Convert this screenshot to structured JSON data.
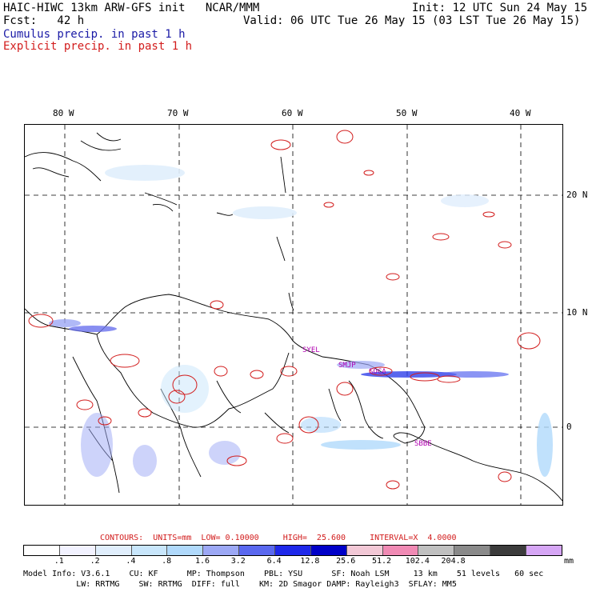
{
  "header": {
    "line1_left": "HAIC-HIWC 13km ARW-GFS init   NCAR/MMM",
    "line1_right": "Init: 12 UTC Sun 24 May 15",
    "line2_left": "Fcst:   42 h",
    "line2_right": "Valid: 06 UTC Tue 26 May 15 (03 LST Tue 26 May 15)",
    "line3": "Cumulus precip. in past 1 h",
    "line4": "Explicit precip. in past 1 h"
  },
  "map": {
    "lon_labels": [
      "80 W",
      "70 W",
      "60 W",
      "50 W",
      "40 W"
    ],
    "lat_labels": [
      "20 N",
      "10 N",
      "0"
    ],
    "station_labels": [
      "SYEL",
      "SMJP",
      "SOCA",
      "SBBE"
    ]
  },
  "legend": {
    "contours_text": "CONTOURS:  UNITS=mm  LOW= 0.10000     HIGH=  25.600     INTERVAL=X  4.0000",
    "tick_labels": [
      ".1",
      ".2",
      ".4",
      ".8",
      "1.6",
      "3.2",
      "6.4",
      "12.8",
      "25.6",
      "51.2",
      "102.4",
      "204.8"
    ],
    "unit": "mm",
    "colors": [
      "#ffffff",
      "#f2f2ff",
      "#e0eefc",
      "#c8e6fb",
      "#b0d9fb",
      "#9ca8f5",
      "#5a68ef",
      "#1e28ea",
      "#0000c8",
      "#f2c8d6",
      "#f08ab4",
      "#c0c0c0",
      "#8a8a8a",
      "#3c3c3c",
      "#d6a6f5"
    ]
  },
  "footer": {
    "line1": "Model Info: V3.6.1    CU: KF      MP: Thompson    PBL: YSU      SF: Noah LSM     13 km    51 levels   60 sec",
    "line2": "           LW: RRTMG    SW: RRTMG  DIFF: full    KM: 2D Smagor DAMP: Rayleigh3  SFLAY: MM5"
  }
}
